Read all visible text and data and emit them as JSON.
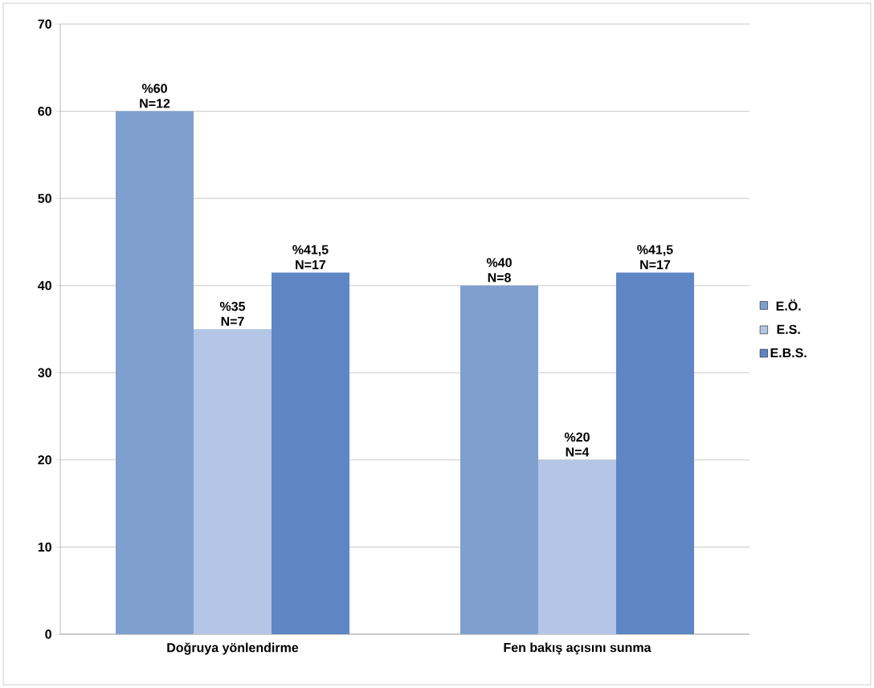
{
  "chart_data": {
    "type": "bar",
    "categories": [
      "Doğruya yönlendirme",
      "Fen bakış açısını sunma"
    ],
    "series": [
      {
        "name": "E.Ö.",
        "color": "#7f9fcf",
        "values": [
          60,
          40
        ],
        "value_labels": [
          "%60 N=12",
          "%40 N=8"
        ]
      },
      {
        "name": "E.S.",
        "color": "#b3c6e5",
        "values": [
          35,
          20
        ],
        "value_labels": [
          "%35 N=7",
          "%20 N=4"
        ]
      },
      {
        "name": "E.B.S.",
        "color": "#5f86c4",
        "values": [
          41.5,
          41.5
        ],
        "value_labels": [
          "%41,5 N=17",
          "%41,5 N=17"
        ]
      }
    ],
    "ylim": [
      0,
      70
    ],
    "yticks": [
      0,
      10,
      20,
      30,
      40,
      50,
      60,
      70
    ],
    "grid": "y",
    "legend": "right"
  }
}
